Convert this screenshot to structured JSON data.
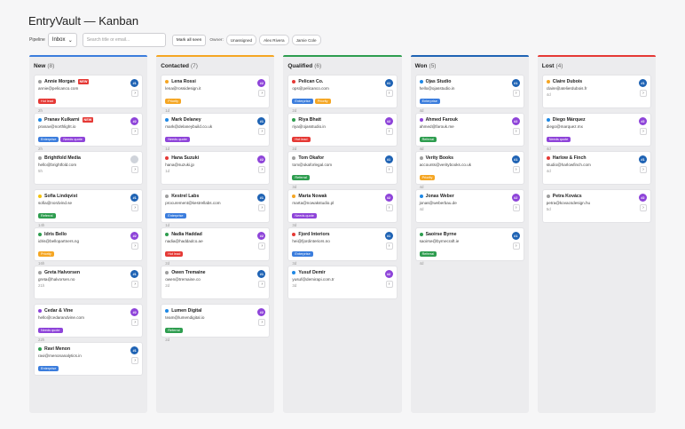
{
  "app": {
    "title": "EntryVault — Kanban"
  },
  "toolbar": {
    "pipeline_label": "Pipeline",
    "pipeline_value": "Inbox",
    "search_placeholder": "Search title or email...",
    "mark_all_label": "Mark all seen",
    "owner_label": "Owner:",
    "owners": [
      "Unassigned",
      "Alex Rivera",
      "Jamie Cole"
    ]
  },
  "columns": [
    {
      "title": "New",
      "count": "(8)",
      "color": "#3b7ddd",
      "cards": [
        {
          "name": "Annie Morgan",
          "email": "annie@pelicanco.com",
          "meta": "2h",
          "dot": "#9e9e9e",
          "new": "NEW",
          "tags": [
            {
              "label": "Hot lead",
              "color": "#e53935"
            }
          ],
          "avatar": "#1",
          "avatar_color": "#1f63b4"
        },
        {
          "name": "Pranav Kulkarni",
          "email": "pranav@northlight.io",
          "meta": "2h",
          "dot": "#1e88e5",
          "new": "NEW",
          "tags": [
            {
              "label": "Enterprise",
              "color": "#3b7ddd"
            },
            {
              "label": "Needs quote",
              "color": "#8e44d9"
            }
          ],
          "avatar": "#2",
          "avatar_color": "#8e44d9"
        },
        {
          "name": "Brightfold Media",
          "email": "hello@brightfold.com",
          "meta": "5h",
          "dot": "#9e9e9e",
          "new": "",
          "tags": [],
          "avatar": "",
          "avatar_color": "#cfd3da"
        },
        {
          "name": "Sofia Lindqvist",
          "email": "sofia@nordvind.se",
          "meta": "14h",
          "dot": "#f4c20d",
          "new": "",
          "tags": [
            {
              "label": "Referral",
              "color": "#2e9d4f"
            }
          ],
          "avatar": "#1",
          "avatar_color": "#1f63b4"
        },
        {
          "name": "Idris Bello",
          "email": "idris@bellopartners.ng",
          "meta": "16h",
          "dot": "#2e9d4f",
          "new": "",
          "tags": [
            {
              "label": "Priority",
              "color": "#f5a623"
            }
          ],
          "avatar": "#2",
          "avatar_color": "#8e44d9"
        },
        {
          "name": "Greta Halvorsen",
          "email": "greta@halvorsen.no",
          "meta": "21h",
          "dot": "#9e9e9e",
          "new": "",
          "tags": [],
          "avatar": "#1",
          "avatar_color": "#1f63b4"
        },
        {
          "name": "Cedar & Vine",
          "email": "hello@cedarandvine.com",
          "meta": "22h",
          "dot": "#8e44d9",
          "new": "",
          "tags": [
            {
              "label": "Needs quote",
              "color": "#8e44d9"
            }
          ],
          "avatar": "#2",
          "avatar_color": "#8e44d9"
        },
        {
          "name": "Ravi Menon",
          "email": "ravi@menonanalytics.in",
          "meta": "",
          "dot": "#2e9d4f",
          "new": "",
          "tags": [
            {
              "label": "Enterprise",
              "color": "#3b7ddd"
            }
          ],
          "avatar": "#1",
          "avatar_color": "#1f63b4"
        }
      ]
    },
    {
      "title": "Contacted",
      "count": "(7)",
      "color": "#f5a623",
      "cards": [
        {
          "name": "Lena Rossi",
          "email": "lena@rossidesign.it",
          "meta": "1d",
          "dot": "#f5a623",
          "new": "",
          "tags": [
            {
              "label": "Priority",
              "color": "#f5a623"
            }
          ],
          "avatar": "#2",
          "avatar_color": "#8e44d9"
        },
        {
          "name": "Mark Delaney",
          "email": "mark@delaneybuild.co.uk",
          "meta": "1d",
          "dot": "#1e88e5",
          "new": "",
          "tags": [
            {
              "label": "Needs quote",
              "color": "#8e44d9"
            }
          ],
          "avatar": "#1",
          "avatar_color": "#1f63b4"
        },
        {
          "name": "Hana Suzuki",
          "email": "hana@suzuki.jp",
          "meta": "1d",
          "dot": "#e53935",
          "new": "",
          "tags": [],
          "avatar": "#2",
          "avatar_color": "#8e44d9"
        },
        {
          "name": "Kestrel Labs",
          "email": "procurement@kestrellabs.com",
          "meta": "1d",
          "dot": "#9e9e9e",
          "new": "",
          "tags": [
            {
              "label": "Enterprise",
              "color": "#3b7ddd"
            }
          ],
          "avatar": "#1",
          "avatar_color": "#1f63b4"
        },
        {
          "name": "Nadia Haddad",
          "email": "nadia@haddadco.ae",
          "meta": "2d",
          "dot": "#2e9d4f",
          "new": "",
          "tags": [
            {
              "label": "Hot lead",
              "color": "#e53935"
            }
          ],
          "avatar": "#2",
          "avatar_color": "#8e44d9"
        },
        {
          "name": "Owen Tremaine",
          "email": "owen@tremaine.co",
          "meta": "2d",
          "dot": "#9e9e9e",
          "new": "",
          "tags": [],
          "avatar": "#1",
          "avatar_color": "#1f63b4"
        },
        {
          "name": "Lumen Digital",
          "email": "team@lumendigital.io",
          "meta": "2d",
          "dot": "#1e88e5",
          "new": "",
          "tags": [
            {
              "label": "Referral",
              "color": "#2e9d4f"
            }
          ],
          "avatar": "#2",
          "avatar_color": "#8e44d9"
        }
      ]
    },
    {
      "title": "Qualified",
      "count": "(6)",
      "color": "#2e9d4f",
      "cards": [
        {
          "name": "Pelican Co.",
          "email": "ops@pelicanco.com",
          "meta": "2d",
          "dot": "#e53935",
          "new": "",
          "tags": [
            {
              "label": "Enterprise",
              "color": "#3b7ddd"
            },
            {
              "label": "Priority",
              "color": "#f5a623"
            }
          ],
          "avatar": "#1",
          "avatar_color": "#1f63b4"
        },
        {
          "name": "Riya Bhatt",
          "email": "riya@ojasstudio.in",
          "meta": "2d",
          "dot": "#2e9d4f",
          "new": "",
          "tags": [
            {
              "label": "Hot lead",
              "color": "#e53935"
            }
          ],
          "avatar": "#2",
          "avatar_color": "#8e44d9"
        },
        {
          "name": "Tom Okafor",
          "email": "tom@okaforlegal.com",
          "meta": "3d",
          "dot": "#9e9e9e",
          "new": "",
          "tags": [
            {
              "label": "Referral",
              "color": "#2e9d4f"
            }
          ],
          "avatar": "#1",
          "avatar_color": "#1f63b4"
        },
        {
          "name": "Marta Nowak",
          "email": "marta@nowakstudio.pl",
          "meta": "3d",
          "dot": "#f5a623",
          "new": "",
          "tags": [
            {
              "label": "Needs quote",
              "color": "#8e44d9"
            }
          ],
          "avatar": "#2",
          "avatar_color": "#8e44d9"
        },
        {
          "name": "Fjord Interiors",
          "email": "hei@fjordinteriors.no",
          "meta": "3d",
          "dot": "#e53935",
          "new": "",
          "tags": [
            {
              "label": "Enterprise",
              "color": "#3b7ddd"
            }
          ],
          "avatar": "#1",
          "avatar_color": "#1f63b4"
        },
        {
          "name": "Yusuf Demir",
          "email": "yusuf@demirapi.com.tr",
          "meta": "3d",
          "dot": "#1e88e5",
          "new": "",
          "tags": [],
          "avatar": "#2",
          "avatar_color": "#8e44d9"
        }
      ]
    },
    {
      "title": "Won",
      "count": "(5)",
      "color": "#1f63b4",
      "cards": [
        {
          "name": "Ojas Studio",
          "email": "hello@ojasstudio.in",
          "meta": "4d",
          "dot": "#1e88e5",
          "new": "",
          "tags": [
            {
              "label": "Enterprise",
              "color": "#3b7ddd"
            }
          ],
          "avatar": "#1",
          "avatar_color": "#1f63b4"
        },
        {
          "name": "Ahmed Farouk",
          "email": "ahmed@farouk.me",
          "meta": "4d",
          "dot": "#8e44d9",
          "new": "",
          "tags": [
            {
              "label": "Referral",
              "color": "#2e9d4f"
            }
          ],
          "avatar": "#2",
          "avatar_color": "#8e44d9"
        },
        {
          "name": "Verity Books",
          "email": "accounts@veritybooks.co.uk",
          "meta": "4d",
          "dot": "#9e9e9e",
          "new": "",
          "tags": [
            {
              "label": "Priority",
              "color": "#f5a623"
            }
          ],
          "avatar": "#1",
          "avatar_color": "#1f63b4"
        },
        {
          "name": "Jonas Weber",
          "email": "jonas@weberbau.de",
          "meta": "4d",
          "dot": "#1e88e5",
          "new": "",
          "tags": [],
          "avatar": "#2",
          "avatar_color": "#8e44d9"
        },
        {
          "name": "Saoirse Byrne",
          "email": "saoirse@byrnecraft.ie",
          "meta": "4d",
          "dot": "#2e9d4f",
          "new": "",
          "tags": [
            {
              "label": "Referral",
              "color": "#2e9d4f"
            }
          ],
          "avatar": "#1",
          "avatar_color": "#1f63b4"
        }
      ]
    },
    {
      "title": "Lost",
      "count": "(4)",
      "color": "#e53935",
      "cards": [
        {
          "name": "Claire Dubois",
          "email": "claire@atelierdubois.fr",
          "meta": "4d",
          "dot": "#f5a623",
          "new": "",
          "tags": [],
          "avatar": "#1",
          "avatar_color": "#1f63b4"
        },
        {
          "name": "Diego Márquez",
          "email": "diego@marquez.mx",
          "meta": "4d",
          "dot": "#1e88e5",
          "new": "",
          "tags": [
            {
              "label": "Needs quote",
              "color": "#8e44d9"
            }
          ],
          "avatar": "#2",
          "avatar_color": "#8e44d9"
        },
        {
          "name": "Harlow & Finch",
          "email": "studio@harlowfinch.com",
          "meta": "4d",
          "dot": "#e53935",
          "new": "",
          "tags": [],
          "avatar": "#1",
          "avatar_color": "#1f63b4"
        },
        {
          "name": "Petra Kovács",
          "email": "petra@kovacsdesign.hu",
          "meta": "5d",
          "dot": "#9e9e9e",
          "new": "",
          "tags": [],
          "avatar": "#2",
          "avatar_color": "#8e44d9"
        }
      ]
    }
  ]
}
